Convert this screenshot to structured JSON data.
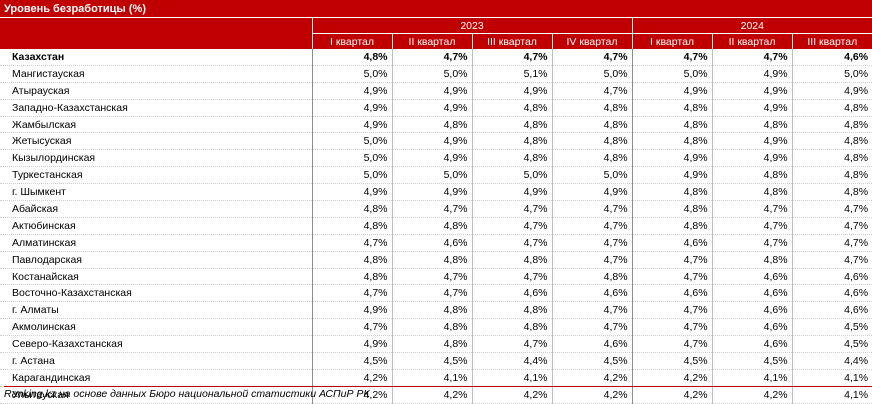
{
  "title": "Уровень безработицы (%)",
  "years": [
    "2023",
    "2024"
  ],
  "quarters_2023": [
    "I квартал",
    "II квартал",
    "III квартал",
    "IV квартал"
  ],
  "quarters_2024": [
    "I квартал",
    "II квартал",
    "III квартал"
  ],
  "rows": [
    {
      "name": "Казахстан",
      "v": [
        "4,8%",
        "4,7%",
        "4,7%",
        "4,7%",
        "4,7%",
        "4,7%",
        "4,6%"
      ]
    },
    {
      "name": "Мангистауская",
      "v": [
        "5,0%",
        "5,0%",
        "5,1%",
        "5,0%",
        "5,0%",
        "4,9%",
        "5,0%"
      ]
    },
    {
      "name": "Атырауская",
      "v": [
        "4,9%",
        "4,9%",
        "4,9%",
        "4,7%",
        "4,9%",
        "4,9%",
        "4,9%"
      ]
    },
    {
      "name": "Западно-Казахстанская",
      "v": [
        "4,9%",
        "4,9%",
        "4,8%",
        "4,8%",
        "4,8%",
        "4,9%",
        "4,8%"
      ]
    },
    {
      "name": "Жамбылская",
      "v": [
        "4,9%",
        "4,8%",
        "4,8%",
        "4,8%",
        "4,8%",
        "4,8%",
        "4,8%"
      ]
    },
    {
      "name": "Жетысуская",
      "v": [
        "5,0%",
        "4,9%",
        "4,8%",
        "4,8%",
        "4,8%",
        "4,9%",
        "4,8%"
      ]
    },
    {
      "name": "Кызылординская",
      "v": [
        "5,0%",
        "4,9%",
        "4,8%",
        "4,8%",
        "4,9%",
        "4,9%",
        "4,8%"
      ]
    },
    {
      "name": "Туркестанская",
      "v": [
        "5,0%",
        "5,0%",
        "5,0%",
        "5,0%",
        "4,9%",
        "4,8%",
        "4,8%"
      ]
    },
    {
      "name": "г. Шымкент",
      "v": [
        "4,9%",
        "4,9%",
        "4,9%",
        "4,9%",
        "4,8%",
        "4,8%",
        "4,8%"
      ]
    },
    {
      "name": "Абайская",
      "v": [
        "4,8%",
        "4,7%",
        "4,7%",
        "4,7%",
        "4,8%",
        "4,7%",
        "4,7%"
      ]
    },
    {
      "name": "Актюбинская",
      "v": [
        "4,8%",
        "4,8%",
        "4,7%",
        "4,7%",
        "4,8%",
        "4,7%",
        "4,7%"
      ]
    },
    {
      "name": "Алматинская",
      "v": [
        "4,7%",
        "4,6%",
        "4,7%",
        "4,7%",
        "4,6%",
        "4,7%",
        "4,7%"
      ]
    },
    {
      "name": "Павлодарская",
      "v": [
        "4,8%",
        "4,8%",
        "4,8%",
        "4,7%",
        "4,7%",
        "4,8%",
        "4,7%"
      ]
    },
    {
      "name": "Костанайская",
      "v": [
        "4,8%",
        "4,7%",
        "4,7%",
        "4,8%",
        "4,7%",
        "4,6%",
        "4,6%"
      ]
    },
    {
      "name": "Восточно-Казахстанская",
      "v": [
        "4,7%",
        "4,7%",
        "4,6%",
        "4,6%",
        "4,6%",
        "4,6%",
        "4,6%"
      ]
    },
    {
      "name": "г. Алматы",
      "v": [
        "4,9%",
        "4,8%",
        "4,8%",
        "4,7%",
        "4,7%",
        "4,6%",
        "4,6%"
      ]
    },
    {
      "name": "Акмолинская",
      "v": [
        "4,7%",
        "4,8%",
        "4,8%",
        "4,7%",
        "4,7%",
        "4,6%",
        "4,5%"
      ]
    },
    {
      "name": "Северо-Казахстанская",
      "v": [
        "4,9%",
        "4,8%",
        "4,7%",
        "4,6%",
        "4,7%",
        "4,6%",
        "4,5%"
      ]
    },
    {
      "name": "г. Астана",
      "v": [
        "4,5%",
        "4,5%",
        "4,4%",
        "4,5%",
        "4,5%",
        "4,5%",
        "4,4%"
      ]
    },
    {
      "name": "Карагандинская",
      "v": [
        "4,2%",
        "4,1%",
        "4,1%",
        "4,2%",
        "4,2%",
        "4,1%",
        "4,1%"
      ]
    },
    {
      "name": "Улытауская",
      "v": [
        "4,2%",
        "4,2%",
        "4,2%",
        "4,2%",
        "4,2%",
        "4,2%",
        "4,1%"
      ]
    }
  ],
  "source": "Ranking.kz на основе данных Бюро национальной статистики АСПиР РК"
}
